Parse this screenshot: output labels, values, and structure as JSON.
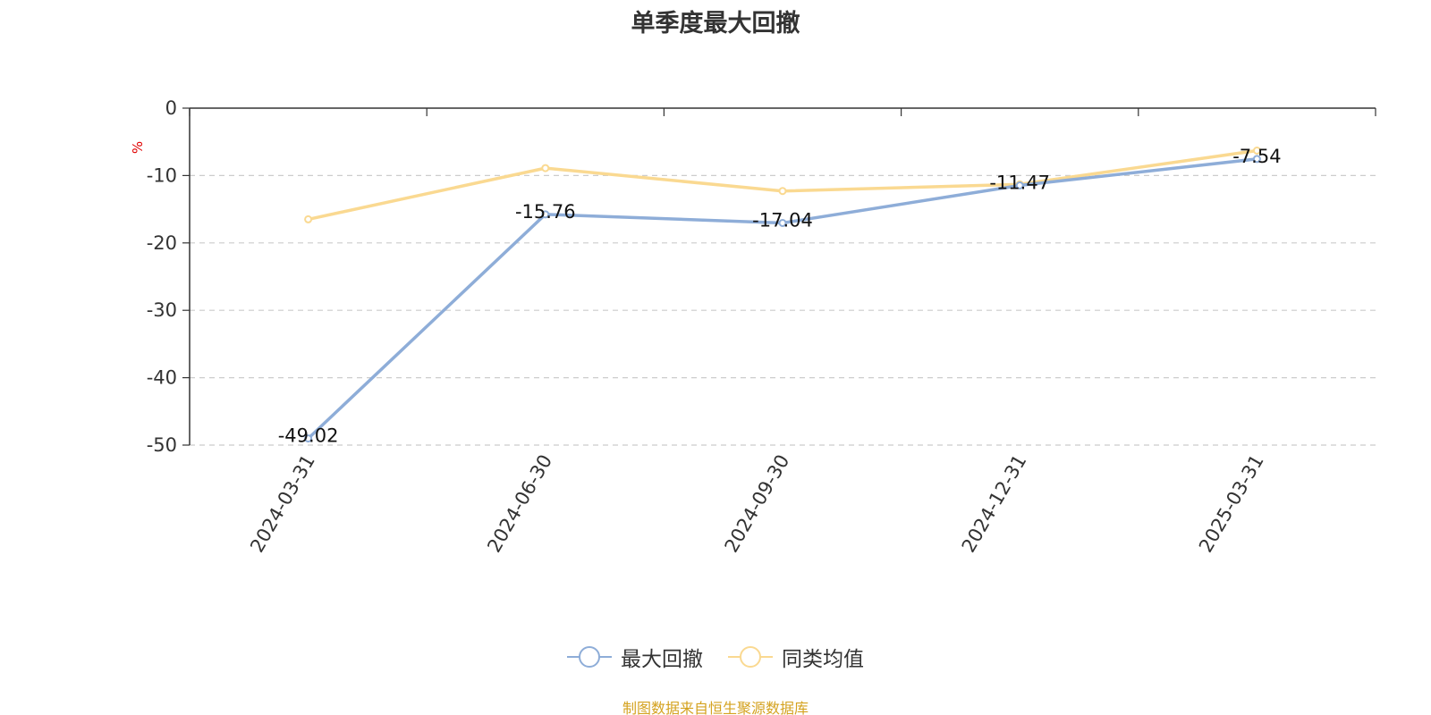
{
  "chart_data": {
    "type": "line",
    "title": "单季度最大回撤",
    "ylabel": "%",
    "xlabel": "",
    "categories": [
      "2024-03-31",
      "2024-06-30",
      "2024-09-30",
      "2024-12-31",
      "2025-03-31"
    ],
    "series": [
      {
        "name": "最大回撤",
        "color": "#8eadd8",
        "values": [
          -49.02,
          -15.76,
          -17.04,
          -11.47,
          -7.54
        ],
        "labels": [
          "-49.02",
          "-15.76",
          "-17.04",
          "-11.47",
          "-7.54"
        ]
      },
      {
        "name": "同类均值",
        "color": "#fad991",
        "values": [
          -16.5,
          -8.9,
          -12.3,
          -11.3,
          -6.3
        ]
      }
    ],
    "ylim": [
      -50,
      0
    ],
    "yticks": [
      0,
      -10,
      -20,
      -30,
      -40,
      -50
    ],
    "ytick_labels": [
      "0",
      "-10",
      "-20",
      "-30",
      "-40",
      "-50"
    ],
    "grid": true,
    "legend_position": "bottom"
  },
  "colors": {
    "ylabel": "#e00000",
    "axis": "#333333",
    "grid": "#cccccc",
    "source": "#d4a21f"
  },
  "source_note": "制图数据来自恒生聚源数据库"
}
